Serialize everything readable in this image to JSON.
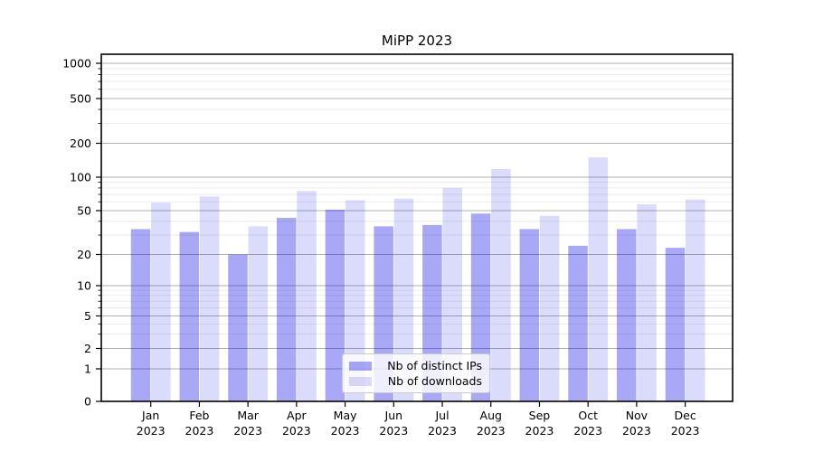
{
  "chart_data": {
    "type": "bar",
    "title": "MiPP 2023",
    "categories": [
      "Jan",
      "Feb",
      "Mar",
      "Apr",
      "May",
      "Jun",
      "Jul",
      "Aug",
      "Sep",
      "Oct",
      "Nov",
      "Dec"
    ],
    "year_label": "2023",
    "series": [
      {
        "name": "Nb of distinct IPs",
        "color": "rgba(0,0,230,0.34)",
        "values": [
          34,
          32,
          20,
          43,
          51,
          36,
          37,
          47,
          34,
          24,
          34,
          23
        ]
      },
      {
        "name": "Nb of downloads",
        "color": "rgba(0,0,230,0.14)",
        "values": [
          59,
          67,
          36,
          75,
          62,
          64,
          80,
          118,
          45,
          150,
          57,
          63
        ]
      }
    ],
    "y_axis": {
      "scale": "log-like",
      "ticks": [
        0,
        1,
        2,
        5,
        10,
        20,
        50,
        100,
        200,
        500,
        1000
      ],
      "minor_ticks": [
        3,
        4,
        6,
        7,
        8,
        9,
        30,
        40,
        60,
        70,
        80,
        90,
        300,
        400,
        600,
        700,
        800,
        900
      ],
      "range": [
        0,
        1000
      ]
    },
    "x_axis": {
      "label_line2": "2023"
    },
    "legend": {
      "position": "lower-center",
      "entries": [
        "Nb of distinct IPs",
        "Nb of downloads"
      ]
    },
    "grid": "both",
    "colors": {
      "bar_dark": "rgba(0,0,230,0.34)",
      "bar_light": "rgba(0,0,230,0.14)",
      "major_grid": "#b0b0b0",
      "minor_grid": "#e7e7e7",
      "axis": "#000000",
      "background": "#ffffff"
    }
  }
}
